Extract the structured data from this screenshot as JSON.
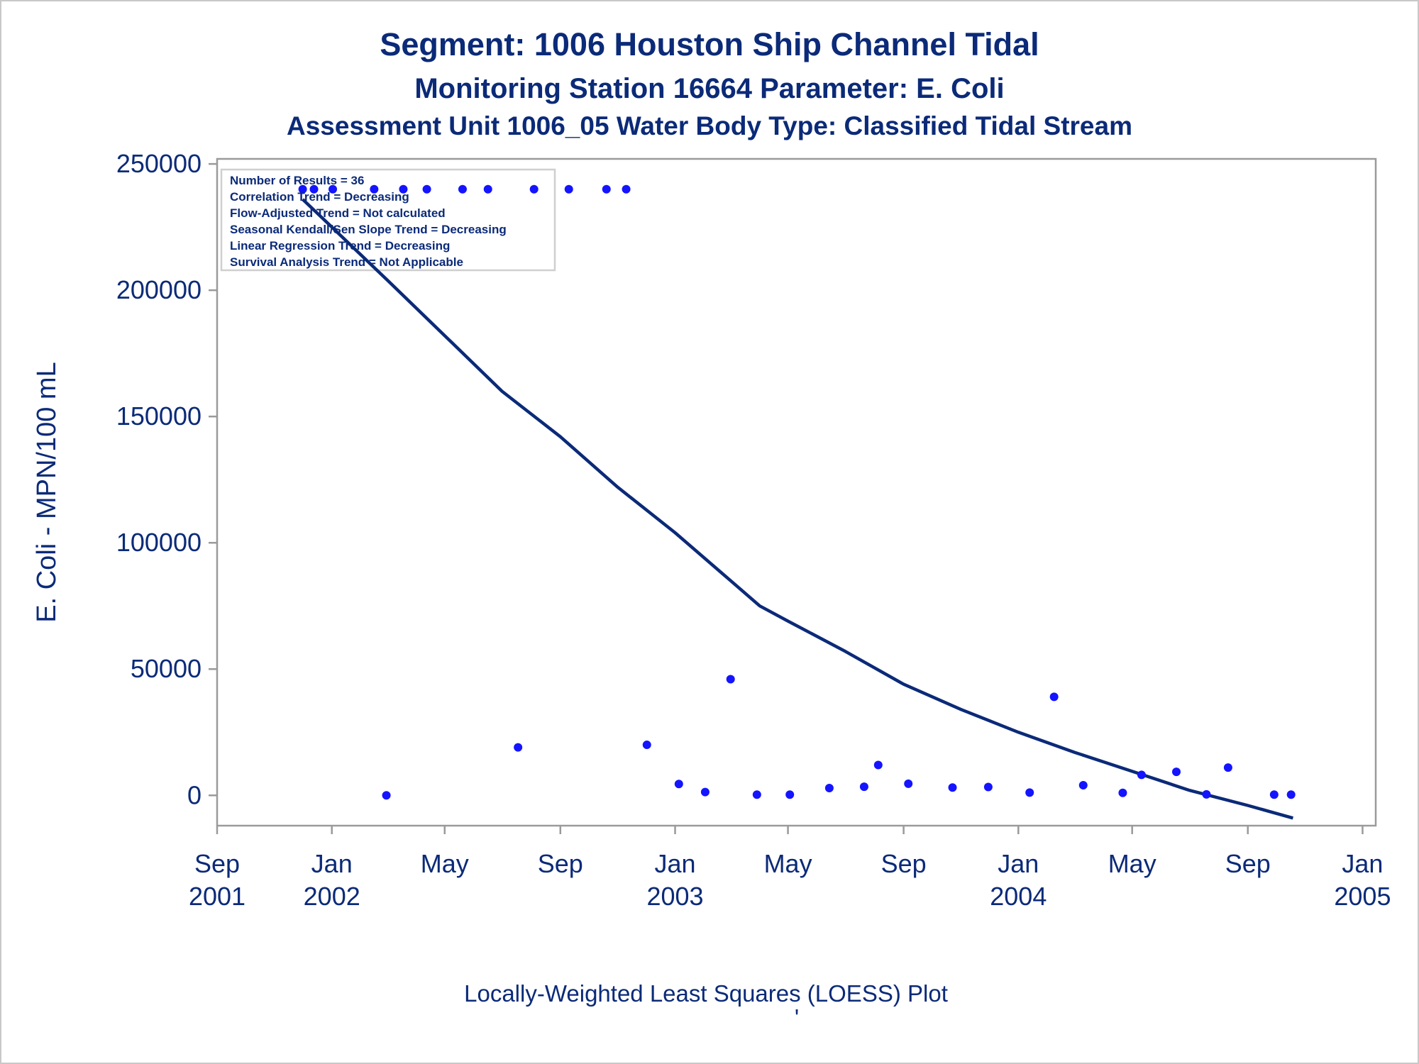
{
  "chart_data": {
    "type": "scatter",
    "title": "Segment: 1006  Houston Ship Channel Tidal",
    "subtitle": "Monitoring Station 16664 Parameter: E. Coli",
    "subtitle2": "Assessment Unit 1006_05   Water Body Type: Classified Tidal Stream",
    "ylabel": "E. Coli - MPN/100 mL",
    "xlabel": "",
    "footnote": "Locally-Weighted Least Squares (LOESS) Plot",
    "footnote_mark": "'",
    "ylim": [
      -12000,
      252000
    ],
    "xlim": [
      "2001-09-01",
      "2005-01-15"
    ],
    "y_ticks": [
      0,
      50000,
      100000,
      150000,
      200000,
      250000
    ],
    "y_tick_labels": [
      "0",
      "50000",
      "100000",
      "150000",
      "200000",
      "250000"
    ],
    "x_ticks": [
      {
        "date": "2001-09-01",
        "month": "Sep",
        "year": "2001"
      },
      {
        "date": "2002-01-01",
        "month": "Jan",
        "year": "2002"
      },
      {
        "date": "2002-05-01",
        "month": "May",
        "year": ""
      },
      {
        "date": "2002-09-01",
        "month": "Sep",
        "year": ""
      },
      {
        "date": "2003-01-01",
        "month": "Jan",
        "year": "2003"
      },
      {
        "date": "2003-05-01",
        "month": "May",
        "year": ""
      },
      {
        "date": "2003-09-01",
        "month": "Sep",
        "year": ""
      },
      {
        "date": "2004-01-01",
        "month": "Jan",
        "year": "2004"
      },
      {
        "date": "2004-05-01",
        "month": "May",
        "year": ""
      },
      {
        "date": "2004-09-01",
        "month": "Sep",
        "year": ""
      },
      {
        "date": "2005-01-01",
        "month": "Jan",
        "year": "2005"
      }
    ],
    "stats": [
      "Number of Results = 36",
      "Correlation Trend = Decreasing",
      "Flow-Adjusted Trend = Not calculated",
      "Seasonal Kendall/Sen Slope Trend = Decreasing",
      "Linear Regression Trend = Decreasing",
      "Survival Analysis Trend = Not Applicable"
    ],
    "legend_position": "top-left",
    "grid": false,
    "series": [
      {
        "kind": "points",
        "color": "#1414ff",
        "points": [
          {
            "x": "2001-12-01",
            "y": 240000
          },
          {
            "x": "2001-12-13",
            "y": 240000
          },
          {
            "x": "2002-01-02",
            "y": 240000
          },
          {
            "x": "2002-02-28",
            "y": 0
          },
          {
            "x": "2002-03-18",
            "y": 240000
          },
          {
            "x": "2002-04-12",
            "y": 240000
          },
          {
            "x": "2002-05-20",
            "y": 240000
          },
          {
            "x": "2002-06-16",
            "y": 240000
          },
          {
            "x": "2002-07-18",
            "y": 19000
          },
          {
            "x": "2002-08-04",
            "y": 240000
          },
          {
            "x": "2002-09-10",
            "y": 240000
          },
          {
            "x": "2002-10-20",
            "y": 240000
          },
          {
            "x": "2002-11-10",
            "y": 240000
          },
          {
            "x": "2002-12-02",
            "y": 20000
          },
          {
            "x": "2003-01-05",
            "y": 4500
          },
          {
            "x": "2003-02-02",
            "y": 1300
          },
          {
            "x": "2003-03-01",
            "y": 46000
          },
          {
            "x": "2003-03-29",
            "y": 300
          },
          {
            "x": "2003-05-03",
            "y": 300
          },
          {
            "x": "2003-06-14",
            "y": 2900
          },
          {
            "x": "2003-07-21",
            "y": 3400
          },
          {
            "x": "2003-08-05",
            "y": 12000
          },
          {
            "x": "2003-09-06",
            "y": 4600
          },
          {
            "x": "2003-10-23",
            "y": 3100
          },
          {
            "x": "2003-11-30",
            "y": 3300
          },
          {
            "x": "2004-01-13",
            "y": 1100
          },
          {
            "x": "2004-02-08",
            "y": 39000
          },
          {
            "x": "2004-03-10",
            "y": 4000
          },
          {
            "x": "2004-04-21",
            "y": 1000
          },
          {
            "x": "2004-05-11",
            "y": 8100
          },
          {
            "x": "2004-06-17",
            "y": 9300
          },
          {
            "x": "2004-07-19",
            "y": 400
          },
          {
            "x": "2004-08-11",
            "y": 11000
          },
          {
            "x": "2004-09-29",
            "y": 300
          },
          {
            "x": "2004-10-17",
            "y": 300
          },
          {
            "x": "2002-02-15",
            "y": 240000
          }
        ]
      },
      {
        "kind": "loess",
        "color": "#0b2a78",
        "points": [
          {
            "x": "2001-12-01",
            "y": 236000
          },
          {
            "x": "2002-01-01",
            "y": 225000
          },
          {
            "x": "2002-03-01",
            "y": 204000
          },
          {
            "x": "2002-05-01",
            "y": 182000
          },
          {
            "x": "2002-07-01",
            "y": 160000
          },
          {
            "x": "2002-09-01",
            "y": 142000
          },
          {
            "x": "2002-11-01",
            "y": 122000
          },
          {
            "x": "2003-01-01",
            "y": 104000
          },
          {
            "x": "2003-03-01",
            "y": 85000
          },
          {
            "x": "2003-04-01",
            "y": 75000
          },
          {
            "x": "2003-05-01",
            "y": 69000
          },
          {
            "x": "2003-07-01",
            "y": 57000
          },
          {
            "x": "2003-09-01",
            "y": 44000
          },
          {
            "x": "2003-11-01",
            "y": 34000
          },
          {
            "x": "2004-01-01",
            "y": 25000
          },
          {
            "x": "2004-03-01",
            "y": 17000
          },
          {
            "x": "2004-05-01",
            "y": 9500
          },
          {
            "x": "2004-07-01",
            "y": 2000
          },
          {
            "x": "2004-09-01",
            "y": -4000
          },
          {
            "x": "2004-10-19",
            "y": -9000
          }
        ]
      }
    ]
  }
}
